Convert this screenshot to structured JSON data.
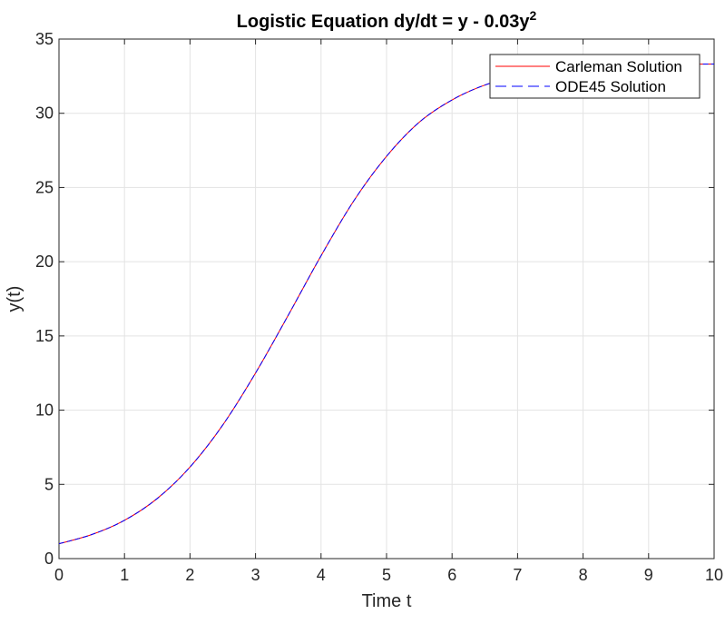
{
  "chart_data": {
    "type": "line",
    "title": {
      "main": "Logistic  Equation  dy/dt  =  y  -  0.03y",
      "superscript": "2"
    },
    "xlabel": "Time t",
    "ylabel": "y(t)",
    "xlim": [
      0,
      10
    ],
    "ylim": [
      0,
      35
    ],
    "xticks": [
      0,
      1,
      2,
      3,
      4,
      5,
      6,
      7,
      8,
      9,
      10
    ],
    "yticks": [
      0,
      5,
      10,
      15,
      20,
      25,
      30,
      35
    ],
    "xtick_labels": [
      "0",
      "1",
      "2",
      "3",
      "4",
      "5",
      "6",
      "7",
      "8",
      "9",
      "10"
    ],
    "ytick_labels": [
      "0",
      "5",
      "10",
      "15",
      "20",
      "25",
      "30",
      "35"
    ],
    "grid": true,
    "legend_position": "top-right",
    "x": [
      0,
      0.5,
      1,
      1.5,
      2,
      2.5,
      3,
      3.5,
      4,
      4.5,
      5,
      5.5,
      6,
      6.5,
      7,
      7.5,
      8,
      8.5,
      9,
      9.5,
      10
    ],
    "series": [
      {
        "name": "Carleman Solution",
        "color": "#ff0000",
        "style": "solid",
        "values": [
          1.0,
          1.62,
          2.58,
          4.05,
          6.17,
          9.0,
          12.5,
          16.4,
          20.4,
          24.1,
          27.1,
          29.4,
          30.9,
          31.9,
          32.5,
          32.9,
          33.1,
          33.2,
          33.27,
          33.3,
          33.32
        ]
      },
      {
        "name": "ODE45 Solution",
        "color": "#0000ff",
        "style": "dashed",
        "values": [
          1.0,
          1.62,
          2.58,
          4.05,
          6.17,
          9.0,
          12.5,
          16.4,
          20.4,
          24.1,
          27.1,
          29.4,
          30.9,
          31.9,
          32.5,
          32.9,
          33.1,
          33.2,
          33.27,
          33.3,
          33.32
        ]
      }
    ]
  }
}
